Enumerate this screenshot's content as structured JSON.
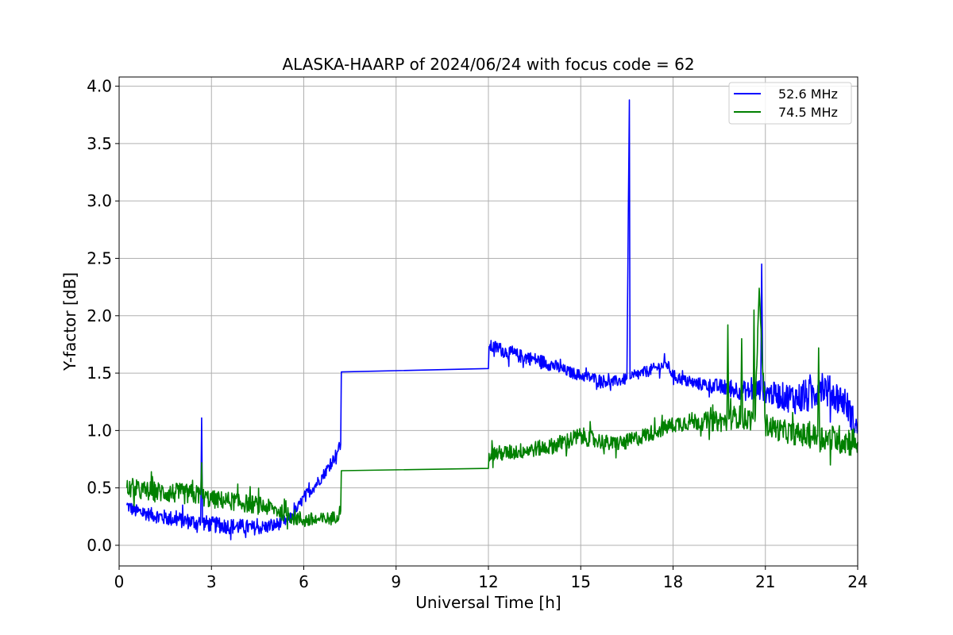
{
  "chart_data": {
    "type": "line",
    "title": "ALASKA-HAARP of 2024/06/24 with focus code = 62",
    "xlabel": "Universal Time [h]",
    "ylabel": "Y-factor [dB]",
    "xlim": [
      0,
      24
    ],
    "ylim": [
      -0.18,
      4.08
    ],
    "xticks": [
      0,
      3,
      6,
      9,
      12,
      15,
      18,
      21,
      24
    ],
    "xtick_labels": [
      "0",
      "3",
      "6",
      "9",
      "12",
      "15",
      "18",
      "21",
      "24"
    ],
    "yticks": [
      0.0,
      0.5,
      1.0,
      1.5,
      2.0,
      2.5,
      3.0,
      3.5,
      4.0
    ],
    "ytick_labels": [
      "0.0",
      "0.5",
      "1.0",
      "1.5",
      "2.0",
      "2.5",
      "3.0",
      "3.5",
      "4.0"
    ],
    "grid": true,
    "legend_position": "top-right",
    "series": [
      {
        "name": "52.6 MHz",
        "color": "#0000ff",
        "x": [
          0.25,
          0.5,
          1.0,
          1.5,
          2.0,
          2.5,
          2.65,
          2.68,
          2.71,
          3.0,
          3.5,
          4.0,
          4.5,
          5.0,
          5.5,
          5.8,
          6.0,
          6.3,
          6.6,
          6.9,
          7.1,
          7.2,
          7.22,
          12.0,
          12.02,
          12.3,
          12.6,
          13.0,
          13.5,
          14.0,
          14.5,
          15.0,
          15.5,
          16.0,
          16.5,
          16.58,
          16.6,
          16.65,
          17.0,
          17.5,
          17.8,
          18.0,
          18.5,
          19.0,
          19.5,
          20.0,
          20.5,
          20.85,
          20.88,
          20.92,
          21.5,
          22.0,
          22.5,
          22.8,
          23.0,
          23.3,
          23.6,
          24.0
        ],
        "y": [
          0.35,
          0.3,
          0.27,
          0.24,
          0.22,
          0.2,
          0.2,
          1.11,
          0.2,
          0.18,
          0.17,
          0.16,
          0.15,
          0.17,
          0.22,
          0.32,
          0.42,
          0.5,
          0.6,
          0.72,
          0.82,
          0.88,
          1.51,
          1.54,
          1.73,
          1.72,
          1.68,
          1.65,
          1.62,
          1.58,
          1.52,
          1.48,
          1.45,
          1.42,
          1.45,
          3.88,
          1.45,
          1.46,
          1.5,
          1.55,
          1.58,
          1.48,
          1.42,
          1.4,
          1.38,
          1.36,
          1.34,
          1.36,
          2.45,
          1.34,
          1.3,
          1.28,
          1.3,
          1.42,
          1.35,
          1.3,
          1.25,
          1.0
        ],
        "noise": [
          0.06,
          0.06,
          0.06,
          0.07,
          0.07,
          0.07,
          0.07,
          0.0,
          0.07,
          0.07,
          0.07,
          0.07,
          0.06,
          0.06,
          0.05,
          0.05,
          0.05,
          0.05,
          0.05,
          0.05,
          0.05,
          0.05,
          0.0,
          0.0,
          0.06,
          0.06,
          0.06,
          0.06,
          0.06,
          0.06,
          0.05,
          0.05,
          0.05,
          0.05,
          0.05,
          0.0,
          0.05,
          0.05,
          0.05,
          0.05,
          0.05,
          0.05,
          0.05,
          0.06,
          0.07,
          0.08,
          0.09,
          0.09,
          0.0,
          0.09,
          0.12,
          0.14,
          0.16,
          0.16,
          0.15,
          0.14,
          0.13,
          0.12
        ],
        "gaps": [
          [
            7.22,
            12.0
          ]
        ]
      },
      {
        "name": "74.5 MHz",
        "color": "#008000",
        "x": [
          0.25,
          0.5,
          1.0,
          1.5,
          2.0,
          2.5,
          2.65,
          2.68,
          2.71,
          3.0,
          3.5,
          4.0,
          4.5,
          5.0,
          5.5,
          6.0,
          6.5,
          7.0,
          7.2,
          7.22,
          12.0,
          12.02,
          12.5,
          13.0,
          13.5,
          14.0,
          14.5,
          15.0,
          15.5,
          16.0,
          16.5,
          17.0,
          17.5,
          18.0,
          18.5,
          19.0,
          19.5,
          19.75,
          19.78,
          19.81,
          20.0,
          20.2,
          20.23,
          20.26,
          20.5,
          20.6,
          20.63,
          20.66,
          20.8,
          21.0,
          21.5,
          22.0,
          22.5,
          22.7,
          22.73,
          22.76,
          23.0,
          23.5,
          24.0
        ],
        "y": [
          0.5,
          0.48,
          0.47,
          0.46,
          0.45,
          0.44,
          0.44,
          0.72,
          0.42,
          0.4,
          0.39,
          0.37,
          0.35,
          0.32,
          0.26,
          0.22,
          0.22,
          0.24,
          0.3,
          0.65,
          0.67,
          0.8,
          0.8,
          0.82,
          0.84,
          0.86,
          0.9,
          0.95,
          0.92,
          0.88,
          0.9,
          0.95,
          1.0,
          1.05,
          1.08,
          1.08,
          1.08,
          1.08,
          1.92,
          1.1,
          1.12,
          1.12,
          1.8,
          1.1,
          1.1,
          1.1,
          2.05,
          1.08,
          2.24,
          1.05,
          1.0,
          0.97,
          0.95,
          0.95,
          1.72,
          0.95,
          0.93,
          0.92,
          0.9
        ],
        "noise": [
          0.08,
          0.08,
          0.09,
          0.09,
          0.09,
          0.09,
          0.09,
          0.0,
          0.08,
          0.08,
          0.08,
          0.08,
          0.08,
          0.07,
          0.07,
          0.07,
          0.06,
          0.06,
          0.06,
          0.0,
          0.0,
          0.07,
          0.07,
          0.07,
          0.07,
          0.07,
          0.08,
          0.08,
          0.07,
          0.07,
          0.07,
          0.07,
          0.07,
          0.07,
          0.08,
          0.08,
          0.09,
          0.1,
          0.0,
          0.1,
          0.1,
          0.1,
          0.0,
          0.1,
          0.1,
          0.1,
          0.0,
          0.1,
          0.0,
          0.1,
          0.1,
          0.1,
          0.11,
          0.11,
          0.0,
          0.11,
          0.12,
          0.13,
          0.14
        ],
        "gaps": [
          [
            7.22,
            12.0
          ]
        ]
      }
    ]
  }
}
